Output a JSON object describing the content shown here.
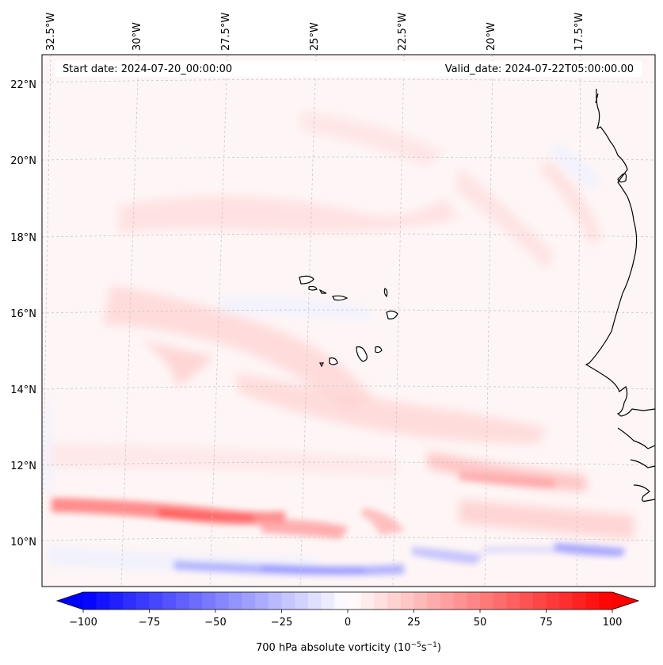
{
  "figure": {
    "start_date_label": "Start date: 2024-07-20_00:00:00",
    "valid_date_label": "Valid_date: 2024-07-22T05:00:00.00",
    "variable_label": "700 hPa absolute vorticity (10",
    "unit_exponent_1": "−5",
    "unit_mid": "s",
    "unit_exponent_2": "−1",
    "unit_close": ")"
  },
  "map": {
    "longitude_labels": [
      "32.5°W",
      "30°W",
      "27.5°W",
      "25°W",
      "22.5°W",
      "20°W",
      "17.5°W"
    ],
    "latitude_labels": [
      "22°N",
      "20°N",
      "18°N",
      "16°N",
      "14°N",
      "12°N",
      "10°N"
    ],
    "colors": {
      "positive": "#ff0000",
      "negative": "#0000ff",
      "coastline": "#000000",
      "gridline": "#c8c8c8"
    }
  },
  "colorbar": {
    "min": -100,
    "max": 100,
    "tick_labels": [
      "−100",
      "−75",
      "−50",
      "−25",
      "0",
      "25",
      "50",
      "75",
      "100"
    ],
    "extend": "both"
  }
}
